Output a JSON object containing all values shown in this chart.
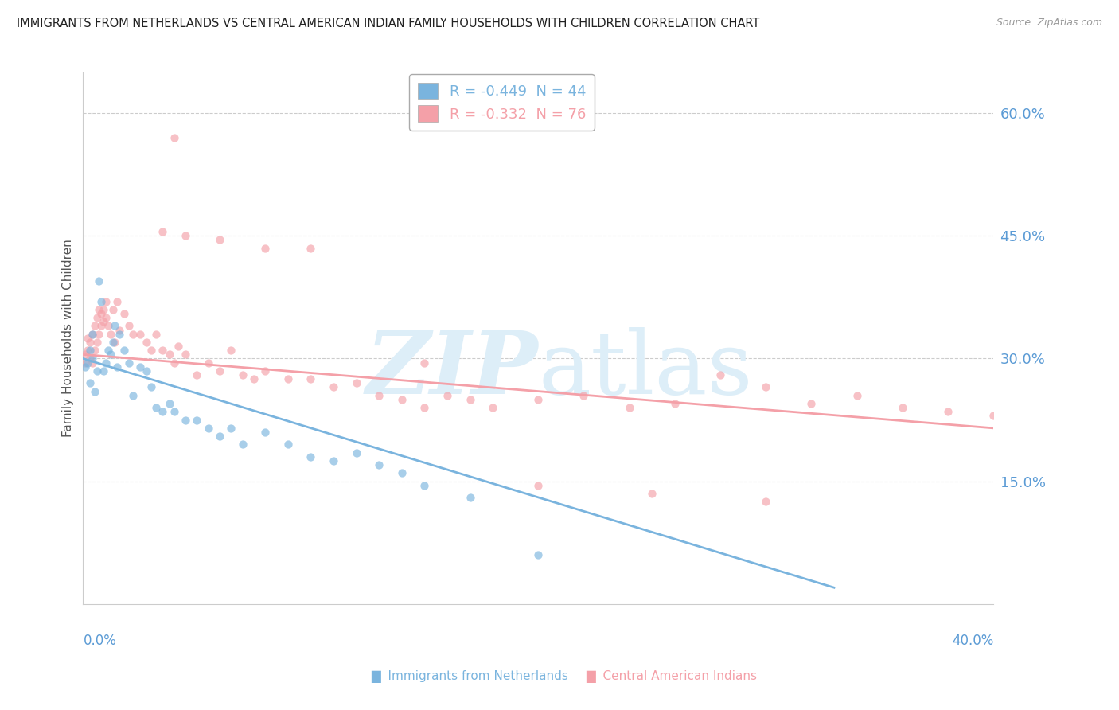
{
  "title": "IMMIGRANTS FROM NETHERLANDS VS CENTRAL AMERICAN INDIAN FAMILY HOUSEHOLDS WITH CHILDREN CORRELATION CHART",
  "source": "Source: ZipAtlas.com",
  "ylabel": "Family Households with Children",
  "legend": [
    {
      "label": "R = -0.449  N = 44",
      "color": "#7ab4de"
    },
    {
      "label": "R = -0.332  N = 76",
      "color": "#f4a0a8"
    }
  ],
  "blue_legend_label": "Immigrants from Netherlands",
  "pink_legend_label": "Central American Indians",
  "xlim": [
    0.0,
    0.4
  ],
  "ylim": [
    0.0,
    0.65
  ],
  "yticks": [
    0.15,
    0.3,
    0.45,
    0.6
  ],
  "ytick_labels": [
    "15.0%",
    "30.0%",
    "45.0%",
    "60.0%"
  ],
  "background_color": "#ffffff",
  "blue_color": "#7ab4de",
  "pink_color": "#f4a0a8",
  "blue_scatter_x": [
    0.001,
    0.002,
    0.003,
    0.003,
    0.004,
    0.004,
    0.005,
    0.006,
    0.007,
    0.008,
    0.009,
    0.01,
    0.011,
    0.012,
    0.013,
    0.014,
    0.015,
    0.016,
    0.018,
    0.02,
    0.022,
    0.025,
    0.028,
    0.03,
    0.032,
    0.035,
    0.038,
    0.04,
    0.045,
    0.05,
    0.055,
    0.06,
    0.065,
    0.07,
    0.08,
    0.09,
    0.1,
    0.11,
    0.12,
    0.13,
    0.14,
    0.15,
    0.17,
    0.2
  ],
  "blue_scatter_y": [
    0.29,
    0.295,
    0.31,
    0.27,
    0.3,
    0.33,
    0.26,
    0.285,
    0.395,
    0.37,
    0.285,
    0.295,
    0.31,
    0.305,
    0.32,
    0.34,
    0.29,
    0.33,
    0.31,
    0.295,
    0.255,
    0.29,
    0.285,
    0.265,
    0.24,
    0.235,
    0.245,
    0.235,
    0.225,
    0.225,
    0.215,
    0.205,
    0.215,
    0.195,
    0.21,
    0.195,
    0.18,
    0.175,
    0.185,
    0.17,
    0.16,
    0.145,
    0.13,
    0.06
  ],
  "pink_scatter_x": [
    0.001,
    0.001,
    0.002,
    0.002,
    0.003,
    0.003,
    0.004,
    0.004,
    0.005,
    0.005,
    0.006,
    0.006,
    0.007,
    0.007,
    0.008,
    0.008,
    0.009,
    0.009,
    0.01,
    0.01,
    0.011,
    0.012,
    0.013,
    0.014,
    0.015,
    0.016,
    0.018,
    0.02,
    0.022,
    0.025,
    0.028,
    0.03,
    0.032,
    0.035,
    0.038,
    0.04,
    0.042,
    0.045,
    0.05,
    0.055,
    0.06,
    0.065,
    0.07,
    0.075,
    0.08,
    0.09,
    0.1,
    0.11,
    0.12,
    0.13,
    0.14,
    0.15,
    0.16,
    0.17,
    0.18,
    0.2,
    0.22,
    0.24,
    0.26,
    0.28,
    0.3,
    0.32,
    0.34,
    0.36,
    0.38,
    0.4,
    0.035,
    0.045,
    0.06,
    0.08,
    0.1,
    0.15,
    0.2,
    0.25,
    0.3,
    0.04
  ],
  "pink_scatter_y": [
    0.295,
    0.305,
    0.31,
    0.325,
    0.3,
    0.32,
    0.295,
    0.33,
    0.31,
    0.34,
    0.32,
    0.35,
    0.33,
    0.36,
    0.34,
    0.355,
    0.345,
    0.36,
    0.35,
    0.37,
    0.34,
    0.33,
    0.36,
    0.32,
    0.37,
    0.335,
    0.355,
    0.34,
    0.33,
    0.33,
    0.32,
    0.31,
    0.33,
    0.31,
    0.305,
    0.295,
    0.315,
    0.305,
    0.28,
    0.295,
    0.285,
    0.31,
    0.28,
    0.275,
    0.285,
    0.275,
    0.275,
    0.265,
    0.27,
    0.255,
    0.25,
    0.24,
    0.255,
    0.25,
    0.24,
    0.25,
    0.255,
    0.24,
    0.245,
    0.28,
    0.265,
    0.245,
    0.255,
    0.24,
    0.235,
    0.23,
    0.455,
    0.45,
    0.445,
    0.435,
    0.435,
    0.295,
    0.145,
    0.135,
    0.125,
    0.57
  ],
  "blue_trend_x": [
    0.0,
    0.33
  ],
  "blue_trend_y": [
    0.3,
    0.02
  ],
  "pink_trend_x": [
    0.0,
    0.4
  ],
  "pink_trend_y": [
    0.305,
    0.215
  ]
}
